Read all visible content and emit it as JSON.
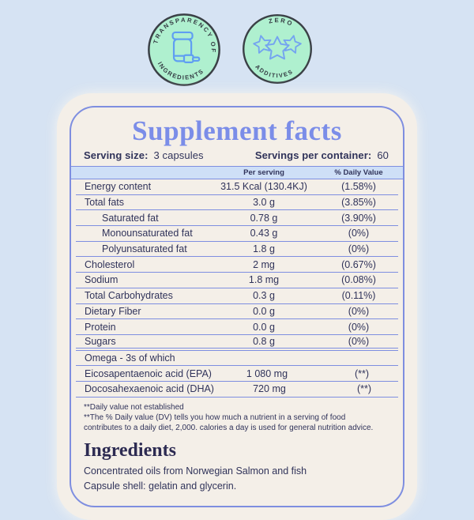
{
  "badges": [
    {
      "top_text": "TRANSPARENCY OF",
      "bottom_text": "INGREDIENTS",
      "icon": "supplement-jar-icon"
    },
    {
      "top_text": "ZERO",
      "bottom_text": "ADDITIVES",
      "icon": "three-stars-icon"
    }
  ],
  "panel": {
    "title": "Supplement facts",
    "serving_size_label": "Serving size:",
    "serving_size_value": "3 capsules",
    "servings_per_container_label": "Servings per container:",
    "servings_per_container_value": "60",
    "columns": {
      "per_serving": "Per serving",
      "daily_value": "% Daily Value"
    },
    "rows": [
      {
        "label": "Energy content",
        "amount": "31.5 Kcal (130.4KJ)",
        "dv": "(1.58%)",
        "indent": false,
        "section_end": false
      },
      {
        "label": "Total fats",
        "amount": "3.0 g",
        "dv": "(3.85%)",
        "indent": false,
        "section_end": false
      },
      {
        "label": "Saturated fat",
        "amount": "0.78 g",
        "dv": "(3.90%)",
        "indent": true,
        "section_end": false
      },
      {
        "label": "Monounsaturated fat",
        "amount": "0.43 g",
        "dv": "(0%)",
        "indent": true,
        "section_end": false
      },
      {
        "label": "Polyunsaturated fat",
        "amount": "1.8 g",
        "dv": "(0%)",
        "indent": true,
        "section_end": false
      },
      {
        "label": "Cholesterol",
        "amount": "2 mg",
        "dv": "(0.67%)",
        "indent": false,
        "section_end": false
      },
      {
        "label": "Sodium",
        "amount": "1.8 mg",
        "dv": "(0.08%)",
        "indent": false,
        "section_end": false
      },
      {
        "label": "Total Carbohydrates",
        "amount": "0.3 g",
        "dv": "(0.11%)",
        "indent": false,
        "section_end": false
      },
      {
        "label": "Dietary Fiber",
        "amount": "0.0 g",
        "dv": "(0%)",
        "indent": false,
        "section_end": false
      },
      {
        "label": "Protein",
        "amount": "0.0 g",
        "dv": "(0%)",
        "indent": false,
        "section_end": false
      },
      {
        "label": "Sugars",
        "amount": "0.8 g",
        "dv": "(0%)",
        "indent": false,
        "section_end": true
      },
      {
        "label": "Omega - 3s of which",
        "amount": "",
        "dv": "",
        "indent": false,
        "section_end": false
      },
      {
        "label": "Eicosapentaenoic acid (EPA)",
        "amount": "1 080 mg",
        "dv": "(**)",
        "indent": false,
        "section_end": false
      },
      {
        "label": "Docosahexaenoic acid (DHA)",
        "amount": "720 mg",
        "dv": "(**)",
        "indent": false,
        "section_end": false
      }
    ],
    "footnotes": [
      "**Daily value not established",
      "**The % Daily value (DV) tells you how much a nutrient in a serving of food contributes to a daily diet, 2,000. calories a day is used for general nutrition advice."
    ],
    "ingredients": {
      "heading": "Ingredients",
      "lines": [
        "Concentrated oils from Norwegian Salmon and fish",
        "Capsule shell: gelatin and glycerin."
      ]
    }
  },
  "colors": {
    "page_bg": "#d6e3f3",
    "card_bg": "#f4efe8",
    "accent_periwinkle": "#7e8ee0",
    "title_blue": "#7b8de8",
    "text_navy": "#30335a",
    "header_bar_bg": "#cedff7",
    "badge_mint": "#aff0cf",
    "badge_ring": "#3b4046",
    "badge_icon_blue": "#5f9ef2"
  }
}
